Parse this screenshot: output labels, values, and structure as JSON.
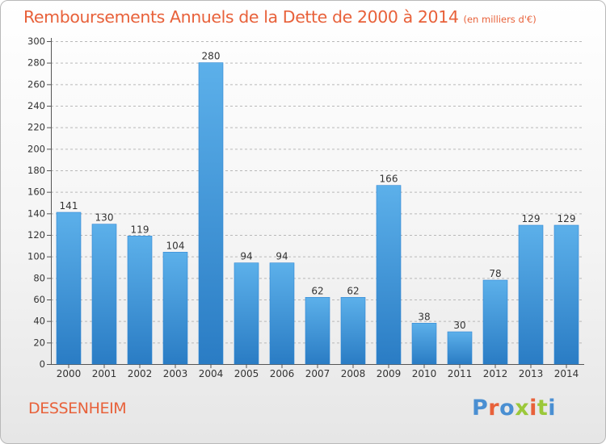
{
  "header": {
    "title": "Remboursements Annuels de la Dette de 2000 à 2014",
    "unit": "(en milliers d'€)"
  },
  "footer": {
    "commune": "DESSENHEIM",
    "brand": "Proxiti"
  },
  "colors": {
    "title": "#e8613a",
    "bar_light": "#5cb0ea",
    "bar_dark": "#2a7cc4",
    "brand_letters": [
      "#4a8fd2",
      "#e8613a",
      "#4a8fd2",
      "#9bc83a",
      "#e8613a",
      "#9bc83a",
      "#4a8fd2"
    ]
  },
  "chart_data": {
    "type": "bar",
    "categories": [
      "2000",
      "2001",
      "2002",
      "2003",
      "2004",
      "2005",
      "2006",
      "2007",
      "2008",
      "2009",
      "2010",
      "2011",
      "2012",
      "2013",
      "2014"
    ],
    "values": [
      141,
      130,
      119,
      104,
      280,
      94,
      94,
      62,
      62,
      166,
      38,
      30,
      78,
      129,
      129
    ],
    "title": "Remboursements Annuels de la Dette de 2000 à 2014",
    "ylim": [
      0,
      300
    ],
    "yticks": [
      0,
      20,
      40,
      60,
      80,
      100,
      120,
      140,
      160,
      180,
      200,
      220,
      240,
      260,
      280,
      300
    ],
    "grid": "horizontal dashed",
    "legend": "none"
  }
}
